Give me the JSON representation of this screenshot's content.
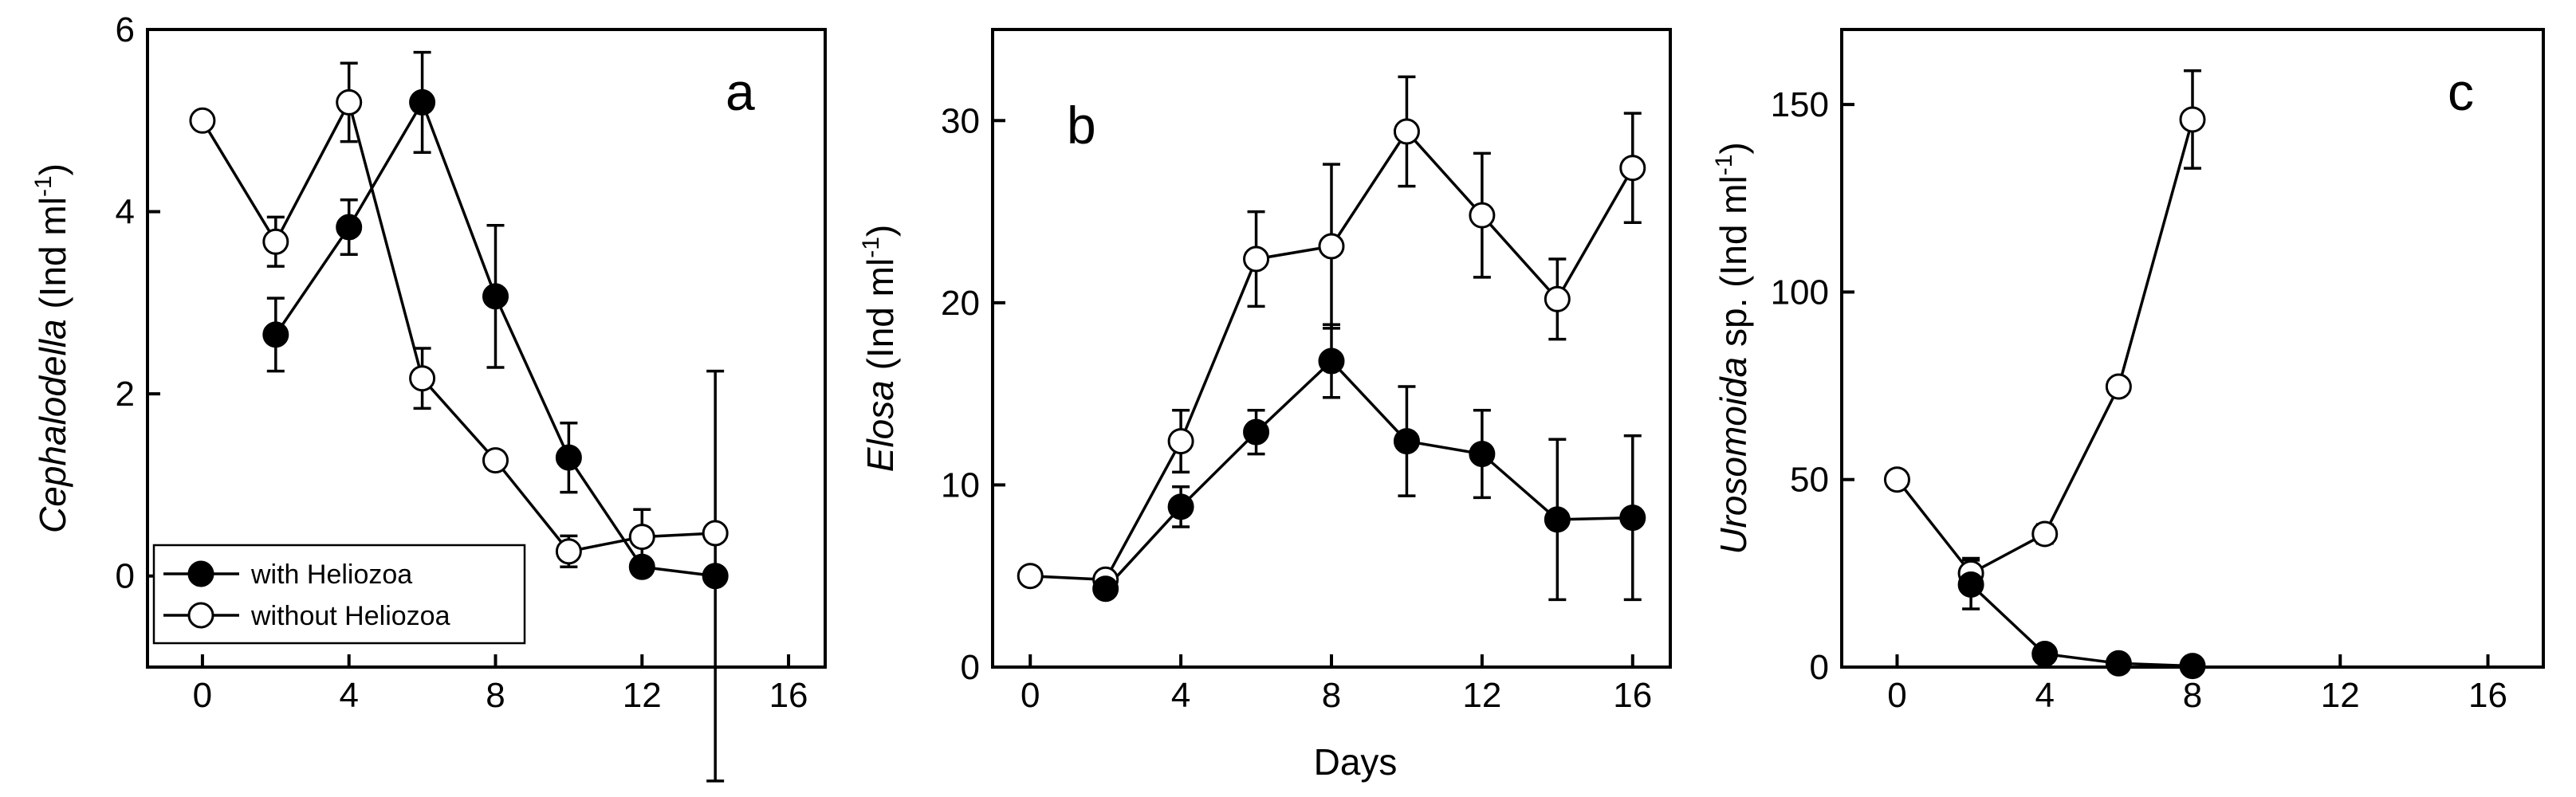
{
  "x_axis_title": "Days",
  "legend": [
    {
      "label": "with Heliozoa",
      "marker": "filled"
    },
    {
      "label": "without Heliozoa",
      "marker": "open"
    }
  ],
  "chart_data": [
    {
      "type": "line",
      "panel_letter": "a",
      "ylabel_italic": "Cephalodella",
      "ylabel_rest": " (Ind ml",
      "ylabel_sup": "-1",
      "ylabel_close": ")",
      "xlim": [
        -1.5,
        17
      ],
      "ylim": [
        -1,
        6
      ],
      "x_ticks": [
        0,
        4,
        8,
        12,
        16
      ],
      "y_ticks": [
        0,
        2,
        4,
        6
      ],
      "series": [
        {
          "name": "with Heliozoa",
          "marker": "filled",
          "x": [
            2,
            4,
            6,
            8,
            10,
            12,
            14
          ],
          "y": [
            2.65,
            3.83,
            5.2,
            3.07,
            1.3,
            0.1,
            0.0
          ],
          "err": [
            0.4,
            0.3,
            0.55,
            0.78,
            0.38,
            0.0,
            2.25
          ]
        },
        {
          "name": "without Heliozoa",
          "marker": "open",
          "x": [
            0,
            2,
            4,
            6,
            8,
            10,
            12,
            14
          ],
          "y": [
            5.0,
            3.67,
            5.2,
            2.17,
            1.27,
            0.27,
            0.43,
            0.47
          ],
          "err": [
            0.0,
            0.27,
            0.43,
            0.33,
            0.0,
            0.17,
            0.3,
            0.0
          ]
        }
      ]
    },
    {
      "type": "line",
      "panel_letter": "b",
      "ylabel_italic": "Elosa",
      "ylabel_rest": " (Ind ml",
      "ylabel_sup": "-1",
      "ylabel_close": ")",
      "xlim": [
        -1,
        17
      ],
      "ylim": [
        0,
        35
      ],
      "x_ticks": [
        0,
        4,
        8,
        12,
        16
      ],
      "y_ticks": [
        0,
        10,
        20,
        30
      ],
      "series": [
        {
          "name": "with Heliozoa",
          "marker": "filled",
          "x": [
            2,
            4,
            6,
            8,
            10,
            12,
            14,
            16
          ],
          "y": [
            4.3,
            8.8,
            12.9,
            16.8,
            12.4,
            11.7,
            8.1,
            8.2
          ],
          "err": [
            0.0,
            1.1,
            1.2,
            2.0,
            3.0,
            2.4,
            4.4,
            4.5
          ]
        },
        {
          "name": "without Heliozoa",
          "marker": "open",
          "x": [
            0,
            2,
            4,
            6,
            8,
            10,
            12,
            14,
            16
          ],
          "y": [
            5.0,
            4.8,
            12.4,
            22.4,
            23.1,
            29.4,
            24.8,
            20.2,
            27.4
          ],
          "err": [
            0.0,
            0.0,
            1.7,
            2.6,
            4.5,
            3.0,
            3.4,
            2.2,
            3.0
          ]
        }
      ]
    },
    {
      "type": "line",
      "panel_letter": "c",
      "ylabel_italic": "Urosomoida",
      "ylabel_rest": " sp. (Ind ml",
      "ylabel_sup": "-1",
      "ylabel_close": ")",
      "xlim": [
        -1.5,
        17.5
      ],
      "ylim": [
        0,
        170
      ],
      "x_ticks": [
        0,
        4,
        8,
        12,
        16
      ],
      "y_ticks": [
        0,
        50,
        100,
        150
      ],
      "series": [
        {
          "name": "with Heliozoa",
          "marker": "filled",
          "x": [
            2,
            4,
            6,
            8
          ],
          "y": [
            22.0,
            3.5,
            1.0,
            0.3
          ],
          "err": [
            6.5,
            0.0,
            0.0,
            0.0
          ]
        },
        {
          "name": "without Heliozoa",
          "marker": "open",
          "x": [
            0,
            2,
            4,
            6,
            8
          ],
          "y": [
            50.0,
            25.0,
            35.5,
            74.8,
            146.0
          ],
          "err": [
            0.0,
            4.0,
            2.5,
            2.0,
            13.0
          ]
        }
      ]
    }
  ]
}
